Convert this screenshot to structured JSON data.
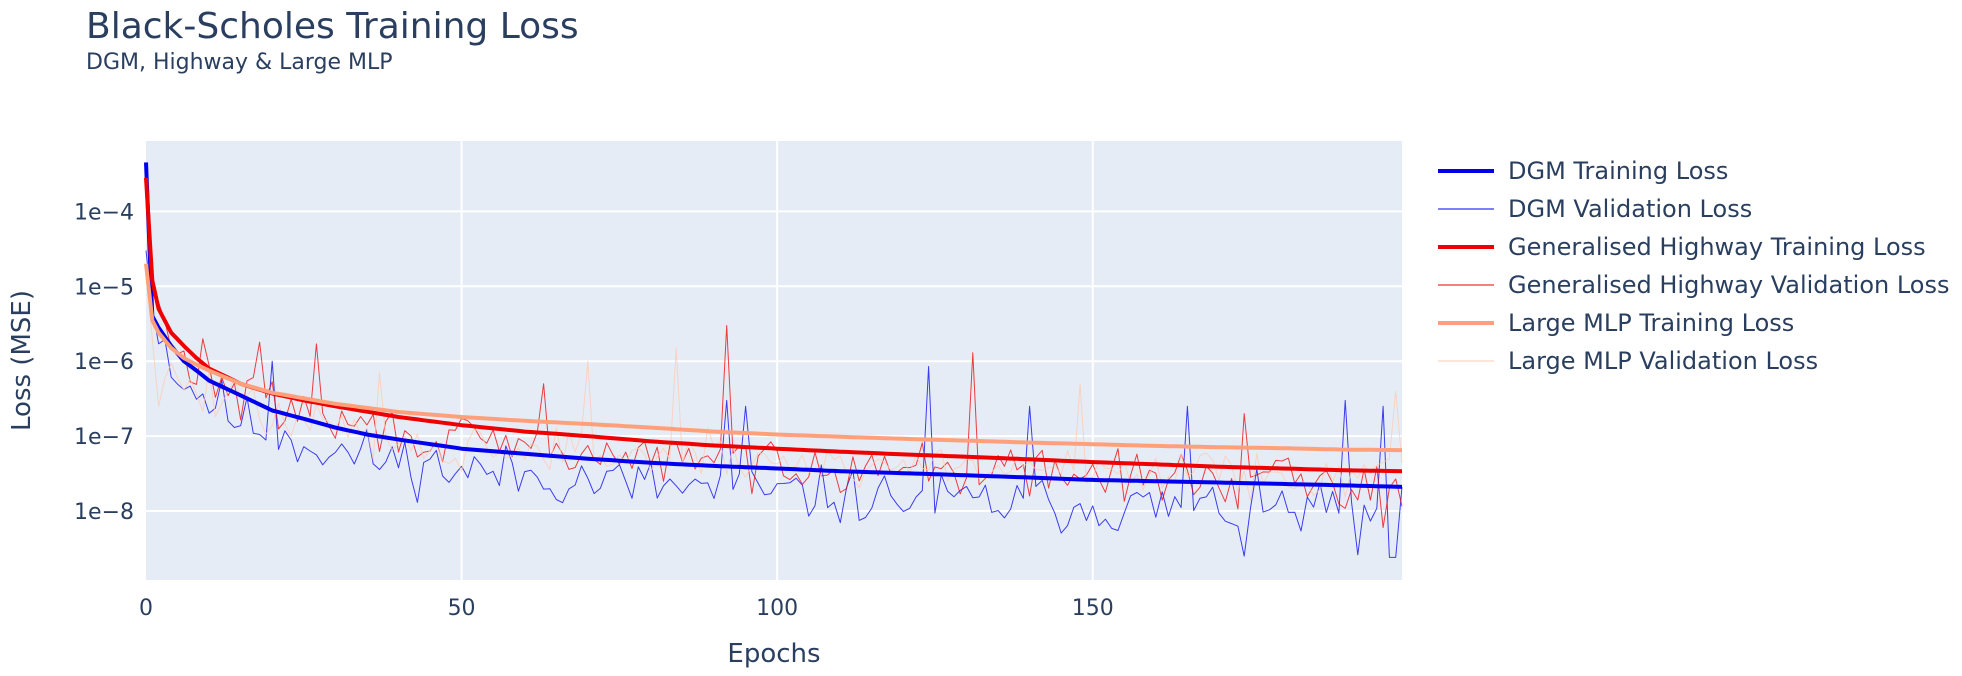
{
  "chart_data": {
    "type": "line",
    "title": "Black-Scholes Training Loss",
    "subtitle": "DGM, Highway & Large MLP",
    "xlabel": "Epochs",
    "ylabel": "Loss (MSE)",
    "x_range": [
      0,
      199
    ],
    "x_ticks": [
      0,
      50,
      100,
      150
    ],
    "x_tick_labels": [
      "0",
      "50",
      "100",
      "150"
    ],
    "y_scale": "log",
    "y_range": [
      1.2e-09,
      0.00087
    ],
    "y_ticks": [
      0.0001,
      1e-05,
      1e-06,
      1e-07,
      1e-08
    ],
    "y_tick_labels": [
      "1e−4",
      "1e−5",
      "1e−6",
      "1e−7",
      "1e−8"
    ],
    "grid": true,
    "legend_position": "right",
    "background": "#e5ecf6",
    "series": [
      {
        "name": "DGM Training Loss",
        "color": "#0000ee",
        "style": "thick",
        "points": [
          [
            0,
            0.00045
          ],
          [
            1,
            4e-06
          ],
          [
            2,
            2.8e-06
          ],
          [
            4,
            1.6e-06
          ],
          [
            6,
            1e-06
          ],
          [
            8,
            7.5e-07
          ],
          [
            10,
            5.5e-07
          ],
          [
            15,
            3.5e-07
          ],
          [
            20,
            2.2e-07
          ],
          [
            25,
            1.7e-07
          ],
          [
            30,
            1.3e-07
          ],
          [
            35,
            1.05e-07
          ],
          [
            40,
            9e-08
          ],
          [
            50,
            6.8e-08
          ],
          [
            60,
            5.8e-08
          ],
          [
            70,
            5e-08
          ],
          [
            80,
            4.4e-08
          ],
          [
            90,
            4e-08
          ],
          [
            100,
            3.7e-08
          ],
          [
            110,
            3.4e-08
          ],
          [
            120,
            3.2e-08
          ],
          [
            130,
            3e-08
          ],
          [
            140,
            2.8e-08
          ],
          [
            150,
            2.6e-08
          ],
          [
            160,
            2.5e-08
          ],
          [
            170,
            2.4e-08
          ],
          [
            180,
            2.3e-08
          ],
          [
            190,
            2.2e-08
          ],
          [
            199,
            2.1e-08
          ]
        ]
      },
      {
        "name": "DGM Validation Loss",
        "color": "#0000ee",
        "style": "thin",
        "anchors": [
          [
            0,
            3e-05
          ],
          [
            1,
            5e-06
          ],
          [
            5,
            6e-07
          ],
          [
            15,
            1.6e-07
          ],
          [
            30,
            6e-08
          ],
          [
            50,
            3.5e-08
          ],
          [
            80,
            2.2e-08
          ],
          [
            100,
            1.7e-08
          ],
          [
            130,
            1.3e-08
          ],
          [
            160,
            1.1e-08
          ],
          [
            199,
            1e-08
          ]
        ],
        "noise_decades": 0.4,
        "seed": 11,
        "spikes": [
          [
            124,
            8.5e-07
          ],
          [
            92,
            3e-07
          ],
          [
            95,
            2.5e-07
          ],
          [
            140,
            2.5e-07
          ],
          [
            165,
            2.5e-07
          ],
          [
            190,
            3e-07
          ],
          [
            196,
            2.5e-07
          ],
          [
            20,
            1e-06
          ]
        ],
        "dips": [
          [
            174,
            2.5e-09
          ],
          [
            192,
            2.6e-09
          ],
          [
            197,
            2.4e-09
          ],
          [
            198,
            2.4e-09
          ]
        ]
      },
      {
        "name": "Generalised Highway Training Loss",
        "color": "#ee0000",
        "style": "thick",
        "points": [
          [
            0,
            0.00028
          ],
          [
            1,
            1.2e-05
          ],
          [
            2,
            5e-06
          ],
          [
            4,
            2.4e-06
          ],
          [
            6,
            1.6e-06
          ],
          [
            8,
            1.1e-06
          ],
          [
            10,
            8e-07
          ],
          [
            15,
            5e-07
          ],
          [
            20,
            3.7e-07
          ],
          [
            25,
            3e-07
          ],
          [
            30,
            2.5e-07
          ],
          [
            40,
            1.8e-07
          ],
          [
            50,
            1.4e-07
          ],
          [
            60,
            1.15e-07
          ],
          [
            70,
            1e-07
          ],
          [
            80,
            8.5e-08
          ],
          [
            90,
            7.5e-08
          ],
          [
            100,
            6.8e-08
          ],
          [
            110,
            6.2e-08
          ],
          [
            120,
            5.7e-08
          ],
          [
            130,
            5.3e-08
          ],
          [
            140,
            4.9e-08
          ],
          [
            150,
            4.5e-08
          ],
          [
            160,
            4.2e-08
          ],
          [
            170,
            3.9e-08
          ],
          [
            180,
            3.7e-08
          ],
          [
            190,
            3.5e-08
          ],
          [
            199,
            3.4e-08
          ]
        ]
      },
      {
        "name": "Generalised Highway Validation Loss",
        "color": "#ee0000",
        "style": "thin",
        "anchors": [
          [
            0,
            0.00025
          ],
          [
            1,
            8e-06
          ],
          [
            5,
            1e-06
          ],
          [
            15,
            3.5e-07
          ],
          [
            30,
            1.5e-07
          ],
          [
            50,
            8e-08
          ],
          [
            80,
            5e-08
          ],
          [
            100,
            4.5e-08
          ],
          [
            130,
            3.5e-08
          ],
          [
            160,
            2.8e-08
          ],
          [
            199,
            2.2e-08
          ]
        ],
        "noise_decades": 0.35,
        "seed": 29,
        "spikes": [
          [
            92,
            3e-06
          ],
          [
            131,
            1.3e-06
          ],
          [
            9,
            2e-06
          ],
          [
            18,
            1.8e-06
          ],
          [
            27,
            1.7e-06
          ],
          [
            63,
            5e-07
          ],
          [
            174,
            2e-07
          ]
        ],
        "dips": [
          [
            196,
            6e-09
          ]
        ]
      },
      {
        "name": "Large MLP Training Loss",
        "color": "#ffa07a",
        "style": "thick",
        "points": [
          [
            0,
            2e-05
          ],
          [
            1,
            3.5e-06
          ],
          [
            2,
            2.4e-06
          ],
          [
            4,
            1.5e-06
          ],
          [
            6,
            1.1e-06
          ],
          [
            8,
            9e-07
          ],
          [
            10,
            7.5e-07
          ],
          [
            15,
            5e-07
          ],
          [
            20,
            3.8e-07
          ],
          [
            25,
            3.2e-07
          ],
          [
            30,
            2.7e-07
          ],
          [
            40,
            2.1e-07
          ],
          [
            50,
            1.8e-07
          ],
          [
            60,
            1.6e-07
          ],
          [
            70,
            1.45e-07
          ],
          [
            80,
            1.3e-07
          ],
          [
            90,
            1.15e-07
          ],
          [
            100,
            1.05e-07
          ],
          [
            110,
            9.8e-08
          ],
          [
            120,
            9.2e-08
          ],
          [
            130,
            8.7e-08
          ],
          [
            140,
            8.2e-08
          ],
          [
            150,
            7.8e-08
          ],
          [
            160,
            7.4e-08
          ],
          [
            170,
            7.1e-08
          ],
          [
            180,
            6.9e-08
          ],
          [
            190,
            6.6e-08
          ],
          [
            199,
            6.5e-08
          ]
        ]
      },
      {
        "name": "Large MLP Validation Loss",
        "color": "#ffc9b0",
        "style": "thin",
        "anchors": [
          [
            0,
            1.8e-05
          ],
          [
            1,
            2e-06
          ],
          [
            5,
            5e-07
          ],
          [
            15,
            2.5e-07
          ],
          [
            30,
            1.2e-07
          ],
          [
            50,
            7e-08
          ],
          [
            80,
            5.5e-08
          ],
          [
            100,
            4.5e-08
          ],
          [
            130,
            4e-08
          ],
          [
            160,
            3.5e-08
          ],
          [
            199,
            3e-08
          ]
        ],
        "noise_decades": 0.35,
        "seed": 47,
        "spikes": [
          [
            84,
            1.5e-06
          ],
          [
            70,
            1e-06
          ],
          [
            37,
            7e-07
          ],
          [
            148,
            5e-07
          ],
          [
            198,
            4e-07
          ]
        ],
        "dips": [
          [
            2,
            2.5e-07
          ]
        ]
      }
    ]
  }
}
